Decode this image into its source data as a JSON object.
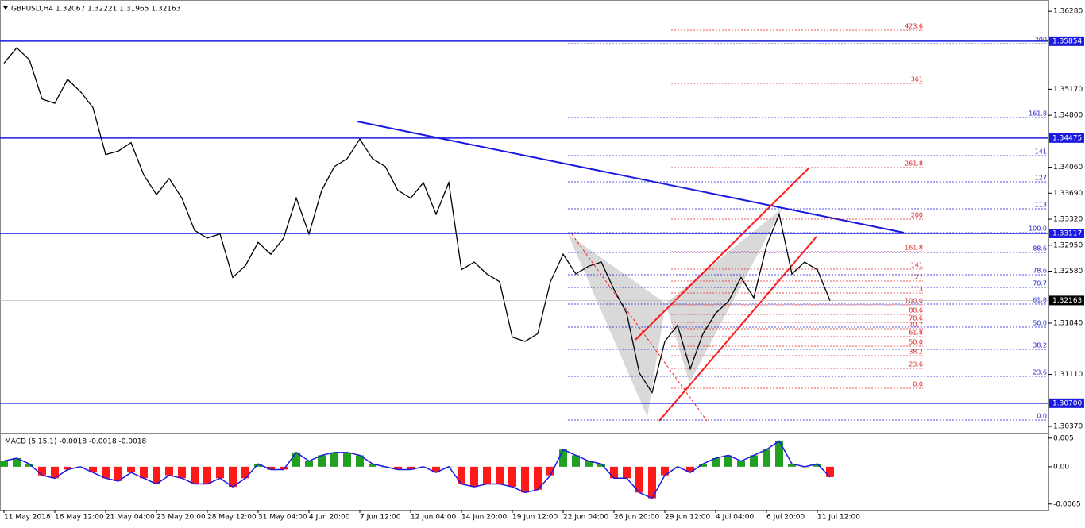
{
  "chart_data": [
    {
      "type": "line",
      "title": "GBPUSD,H4  1.32067 1.32221 1.31965 1.32163",
      "color": "#000000",
      "values": [
        1.3554,
        1.3576,
        1.3559,
        1.3503,
        1.3497,
        1.3531,
        1.3514,
        1.3491,
        1.3424,
        1.3429,
        1.3441,
        1.3395,
        1.3367,
        1.339,
        1.3362,
        1.3316,
        1.3305,
        1.3311,
        1.3249,
        1.3266,
        1.3299,
        1.3282,
        1.3305,
        1.3362,
        1.3311,
        1.3373,
        1.3407,
        1.3418,
        1.3446,
        1.3418,
        1.3407,
        1.3373,
        1.3362,
        1.3384,
        1.3339,
        1.3384,
        1.326,
        1.3271,
        1.3254,
        1.3243,
        1.3164,
        1.3158,
        1.3169,
        1.3243,
        1.3282,
        1.3254,
        1.3265,
        1.3271,
        1.3232,
        1.3198,
        1.3113,
        1.3085,
        1.3158,
        1.3181,
        1.3119,
        1.3169,
        1.3198,
        1.3215,
        1.3249,
        1.322,
        1.3294,
        1.3339,
        1.3254,
        1.3271,
        1.326,
        1.3216
      ],
      "ylim": [
        1.3028,
        1.3644
      ],
      "yticks": [
        {
          "value": 1.3628,
          "label": "1.36280"
        },
        {
          "value": 1.3517,
          "label": "1.35170"
        },
        {
          "value": 1.348,
          "label": "1.34800"
        },
        {
          "value": 1.3406,
          "label": "1.34060"
        },
        {
          "value": 1.3369,
          "label": "1.33690"
        },
        {
          "value": 1.3332,
          "label": "1.33320"
        },
        {
          "value": 1.3295,
          "label": "1.32950"
        },
        {
          "value": 1.3258,
          "label": "1.32580"
        },
        {
          "value": 1.3184,
          "label": "1.31840"
        },
        {
          "value": 1.3111,
          "label": "1.31110"
        },
        {
          "value": 1.3037,
          "label": "1.30370"
        }
      ],
      "levels": [
        {
          "value": 1.35854,
          "label": "1.35854"
        },
        {
          "value": 1.34475,
          "label": "1.34475"
        },
        {
          "value": 1.33117,
          "label": "1.33117"
        },
        {
          "value": 1.307,
          "label": "1.30700"
        }
      ],
      "last_price": {
        "value": 1.32163,
        "label": "1.32163"
      },
      "fib_blue": [
        "200",
        "161.8",
        "141",
        "127",
        "113",
        "100.0",
        "88.6",
        "78.6",
        "70.7",
        "61.8",
        "50.0",
        "38.2",
        "23.6",
        "0.0"
      ],
      "fib_red": [
        "423.6",
        "361",
        "261.8",
        "200",
        "161.8",
        "141",
        "127",
        "113",
        "100.0",
        "88.6",
        "78.6",
        "70.7",
        "61.8",
        "50.0",
        "38.2",
        "23.6",
        "0.0"
      ]
    },
    {
      "type": "bar",
      "title": "MACD (5,15,1) -0.0018 -0.0018 -0.0018",
      "positive_color": "#22a022",
      "negative_color": "#ff1a1a",
      "line_color": "#1a1ae0",
      "categories": [
        "11 May 2018",
        null,
        null,
        null,
        "16 May 12:00",
        null,
        null,
        null,
        "21 May 04:00",
        null,
        null,
        null,
        "23 May 20:00",
        null,
        null,
        null,
        "28 May 12:00",
        null,
        null,
        null,
        "31 May 04:00",
        null,
        null,
        null,
        "4 Jun 20:00",
        null,
        null,
        null,
        "7 Jun 12:00",
        null,
        null,
        null,
        "12 Jun 04:00",
        null,
        null,
        null,
        "14 Jun 20:00",
        null,
        null,
        null,
        "19 Jun 12:00",
        null,
        null,
        null,
        "22 Jun 04:00",
        null,
        null,
        null,
        "26 Jun 20:00",
        null,
        null,
        null,
        "29 Jun 12:00",
        null,
        null,
        null,
        "4 Jul 04:00",
        null,
        null,
        null,
        "6 Jul 20:00",
        null,
        null,
        null,
        "11 Jul 12:00",
        null
      ],
      "values": [
        0.001,
        0.0015,
        0.0005,
        -0.0015,
        -0.002,
        -0.0005,
        0,
        -0.001,
        -0.002,
        -0.0025,
        -0.001,
        -0.002,
        -0.003,
        -0.0015,
        -0.002,
        -0.003,
        -0.003,
        -0.002,
        -0.0035,
        -0.002,
        0.0005,
        -0.0005,
        -0.0005,
        0.0025,
        0.001,
        0.002,
        0.0025,
        0.0025,
        0.002,
        0.0005,
        0,
        -0.0005,
        -0.0005,
        0,
        -0.001,
        0,
        -0.003,
        -0.0035,
        -0.003,
        -0.003,
        -0.0035,
        -0.0045,
        -0.004,
        -0.0015,
        0.003,
        0.002,
        0.001,
        0.0005,
        -0.002,
        -0.002,
        -0.0045,
        -0.0055,
        -0.0015,
        0,
        -0.001,
        0.0005,
        0.0015,
        0.002,
        0.001,
        0.002,
        0.003,
        0.0045,
        0.0005,
        0,
        0.0005,
        -0.0018
      ],
      "ylim": [
        -0.0075,
        0.0058
      ],
      "yticks": [
        0.005,
        {
          "value": 0,
          "label": "0.00"
        },
        -0.0065
      ]
    }
  ]
}
